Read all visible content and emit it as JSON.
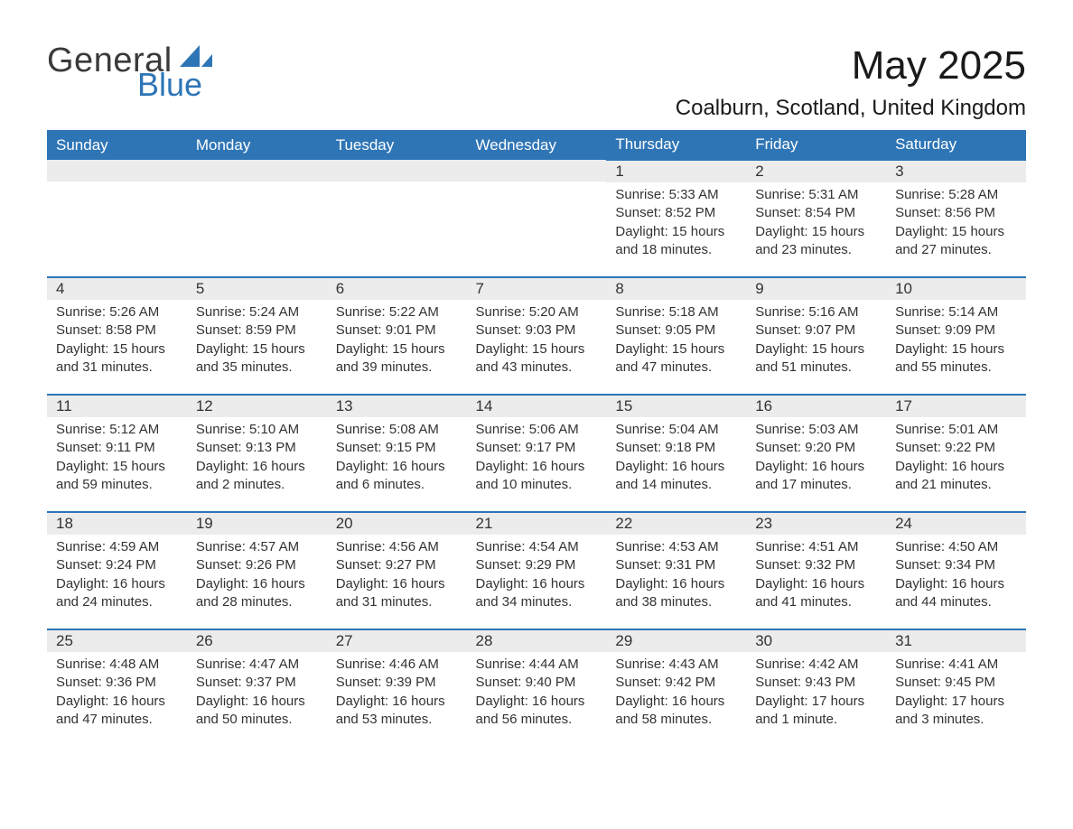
{
  "brand": {
    "word1": "General",
    "word2": "Blue",
    "word1_color": "#3a3a3a",
    "word2_color": "#2e75b6",
    "sail_color": "#2e75b6"
  },
  "header": {
    "month_title": "May 2025",
    "location": "Coalburn, Scotland, United Kingdom"
  },
  "style": {
    "header_bg": "#2e75b6",
    "header_fg": "#ffffff",
    "row_separator": "#2e75b6",
    "daynum_bg": "#ececec",
    "text_color": "#333333",
    "page_bg": "#ffffff",
    "title_fontsize": 44,
    "location_fontsize": 24,
    "th_fontsize": 17,
    "body_fontsize": 15
  },
  "calendar": {
    "columns": [
      "Sunday",
      "Monday",
      "Tuesday",
      "Wednesday",
      "Thursday",
      "Friday",
      "Saturday"
    ],
    "leading_blanks": 4,
    "days": [
      {
        "n": "1",
        "sunrise": "Sunrise: 5:33 AM",
        "sunset": "Sunset: 8:52 PM",
        "daylight": "Daylight: 15 hours and 18 minutes."
      },
      {
        "n": "2",
        "sunrise": "Sunrise: 5:31 AM",
        "sunset": "Sunset: 8:54 PM",
        "daylight": "Daylight: 15 hours and 23 minutes."
      },
      {
        "n": "3",
        "sunrise": "Sunrise: 5:28 AM",
        "sunset": "Sunset: 8:56 PM",
        "daylight": "Daylight: 15 hours and 27 minutes."
      },
      {
        "n": "4",
        "sunrise": "Sunrise: 5:26 AM",
        "sunset": "Sunset: 8:58 PM",
        "daylight": "Daylight: 15 hours and 31 minutes."
      },
      {
        "n": "5",
        "sunrise": "Sunrise: 5:24 AM",
        "sunset": "Sunset: 8:59 PM",
        "daylight": "Daylight: 15 hours and 35 minutes."
      },
      {
        "n": "6",
        "sunrise": "Sunrise: 5:22 AM",
        "sunset": "Sunset: 9:01 PM",
        "daylight": "Daylight: 15 hours and 39 minutes."
      },
      {
        "n": "7",
        "sunrise": "Sunrise: 5:20 AM",
        "sunset": "Sunset: 9:03 PM",
        "daylight": "Daylight: 15 hours and 43 minutes."
      },
      {
        "n": "8",
        "sunrise": "Sunrise: 5:18 AM",
        "sunset": "Sunset: 9:05 PM",
        "daylight": "Daylight: 15 hours and 47 minutes."
      },
      {
        "n": "9",
        "sunrise": "Sunrise: 5:16 AM",
        "sunset": "Sunset: 9:07 PM",
        "daylight": "Daylight: 15 hours and 51 minutes."
      },
      {
        "n": "10",
        "sunrise": "Sunrise: 5:14 AM",
        "sunset": "Sunset: 9:09 PM",
        "daylight": "Daylight: 15 hours and 55 minutes."
      },
      {
        "n": "11",
        "sunrise": "Sunrise: 5:12 AM",
        "sunset": "Sunset: 9:11 PM",
        "daylight": "Daylight: 15 hours and 59 minutes."
      },
      {
        "n": "12",
        "sunrise": "Sunrise: 5:10 AM",
        "sunset": "Sunset: 9:13 PM",
        "daylight": "Daylight: 16 hours and 2 minutes."
      },
      {
        "n": "13",
        "sunrise": "Sunrise: 5:08 AM",
        "sunset": "Sunset: 9:15 PM",
        "daylight": "Daylight: 16 hours and 6 minutes."
      },
      {
        "n": "14",
        "sunrise": "Sunrise: 5:06 AM",
        "sunset": "Sunset: 9:17 PM",
        "daylight": "Daylight: 16 hours and 10 minutes."
      },
      {
        "n": "15",
        "sunrise": "Sunrise: 5:04 AM",
        "sunset": "Sunset: 9:18 PM",
        "daylight": "Daylight: 16 hours and 14 minutes."
      },
      {
        "n": "16",
        "sunrise": "Sunrise: 5:03 AM",
        "sunset": "Sunset: 9:20 PM",
        "daylight": "Daylight: 16 hours and 17 minutes."
      },
      {
        "n": "17",
        "sunrise": "Sunrise: 5:01 AM",
        "sunset": "Sunset: 9:22 PM",
        "daylight": "Daylight: 16 hours and 21 minutes."
      },
      {
        "n": "18",
        "sunrise": "Sunrise: 4:59 AM",
        "sunset": "Sunset: 9:24 PM",
        "daylight": "Daylight: 16 hours and 24 minutes."
      },
      {
        "n": "19",
        "sunrise": "Sunrise: 4:57 AM",
        "sunset": "Sunset: 9:26 PM",
        "daylight": "Daylight: 16 hours and 28 minutes."
      },
      {
        "n": "20",
        "sunrise": "Sunrise: 4:56 AM",
        "sunset": "Sunset: 9:27 PM",
        "daylight": "Daylight: 16 hours and 31 minutes."
      },
      {
        "n": "21",
        "sunrise": "Sunrise: 4:54 AM",
        "sunset": "Sunset: 9:29 PM",
        "daylight": "Daylight: 16 hours and 34 minutes."
      },
      {
        "n": "22",
        "sunrise": "Sunrise: 4:53 AM",
        "sunset": "Sunset: 9:31 PM",
        "daylight": "Daylight: 16 hours and 38 minutes."
      },
      {
        "n": "23",
        "sunrise": "Sunrise: 4:51 AM",
        "sunset": "Sunset: 9:32 PM",
        "daylight": "Daylight: 16 hours and 41 minutes."
      },
      {
        "n": "24",
        "sunrise": "Sunrise: 4:50 AM",
        "sunset": "Sunset: 9:34 PM",
        "daylight": "Daylight: 16 hours and 44 minutes."
      },
      {
        "n": "25",
        "sunrise": "Sunrise: 4:48 AM",
        "sunset": "Sunset: 9:36 PM",
        "daylight": "Daylight: 16 hours and 47 minutes."
      },
      {
        "n": "26",
        "sunrise": "Sunrise: 4:47 AM",
        "sunset": "Sunset: 9:37 PM",
        "daylight": "Daylight: 16 hours and 50 minutes."
      },
      {
        "n": "27",
        "sunrise": "Sunrise: 4:46 AM",
        "sunset": "Sunset: 9:39 PM",
        "daylight": "Daylight: 16 hours and 53 minutes."
      },
      {
        "n": "28",
        "sunrise": "Sunrise: 4:44 AM",
        "sunset": "Sunset: 9:40 PM",
        "daylight": "Daylight: 16 hours and 56 minutes."
      },
      {
        "n": "29",
        "sunrise": "Sunrise: 4:43 AM",
        "sunset": "Sunset: 9:42 PM",
        "daylight": "Daylight: 16 hours and 58 minutes."
      },
      {
        "n": "30",
        "sunrise": "Sunrise: 4:42 AM",
        "sunset": "Sunset: 9:43 PM",
        "daylight": "Daylight: 17 hours and 1 minute."
      },
      {
        "n": "31",
        "sunrise": "Sunrise: 4:41 AM",
        "sunset": "Sunset: 9:45 PM",
        "daylight": "Daylight: 17 hours and 3 minutes."
      }
    ]
  }
}
